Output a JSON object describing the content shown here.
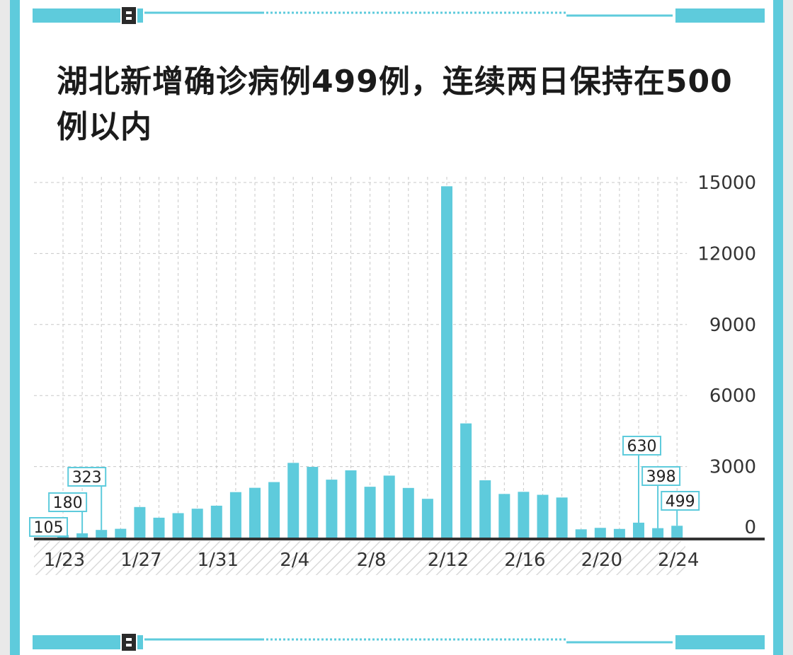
{
  "colors": {
    "accent": "#5ecbdc",
    "bar": "#5ecbdc",
    "axis": "#333333",
    "grid": "#c8c8c8",
    "title": "#1b1b1b"
  },
  "chart_data": {
    "type": "bar",
    "title": "湖北新增确诊病例499例，连续两日保持在500例以内",
    "xlabel": "",
    "ylabel": "",
    "ylim": [
      0,
      15000
    ],
    "y_ticks": [
      0,
      3000,
      6000,
      9000,
      12000,
      15000
    ],
    "y_axis_side": "right",
    "grid": true,
    "x_tick_labels": [
      "1/23",
      "1/27",
      "1/31",
      "2/4",
      "2/8",
      "2/12",
      "2/16",
      "2/20",
      "2/24"
    ],
    "x_tick_every": 4,
    "categories": [
      "1/23",
      "1/24",
      "1/25",
      "1/26",
      "1/27",
      "1/28",
      "1/29",
      "1/30",
      "1/31",
      "2/1",
      "2/2",
      "2/3",
      "2/4",
      "2/5",
      "2/6",
      "2/7",
      "2/8",
      "2/9",
      "2/10",
      "2/11",
      "2/12",
      "2/13",
      "2/14",
      "2/15",
      "2/16",
      "2/17",
      "2/18",
      "2/19",
      "2/20",
      "2/21",
      "2/22",
      "2/23",
      "2/24"
    ],
    "values": [
      105,
      180,
      323,
      371,
      1291,
      840,
      1032,
      1220,
      1347,
      1921,
      2103,
      2345,
      3156,
      2987,
      2447,
      2841,
      2147,
      2618,
      2097,
      1638,
      14840,
      4823,
      2420,
      1843,
      1933,
      1807,
      1693,
      349,
      411,
      366,
      630,
      398,
      499
    ],
    "data_labels": [
      {
        "category": "1/23",
        "text": "105"
      },
      {
        "category": "1/24",
        "text": "180"
      },
      {
        "category": "1/25",
        "text": "323"
      },
      {
        "category": "2/22",
        "text": "630"
      },
      {
        "category": "2/23",
        "text": "398"
      },
      {
        "category": "2/24",
        "text": "499"
      }
    ]
  }
}
